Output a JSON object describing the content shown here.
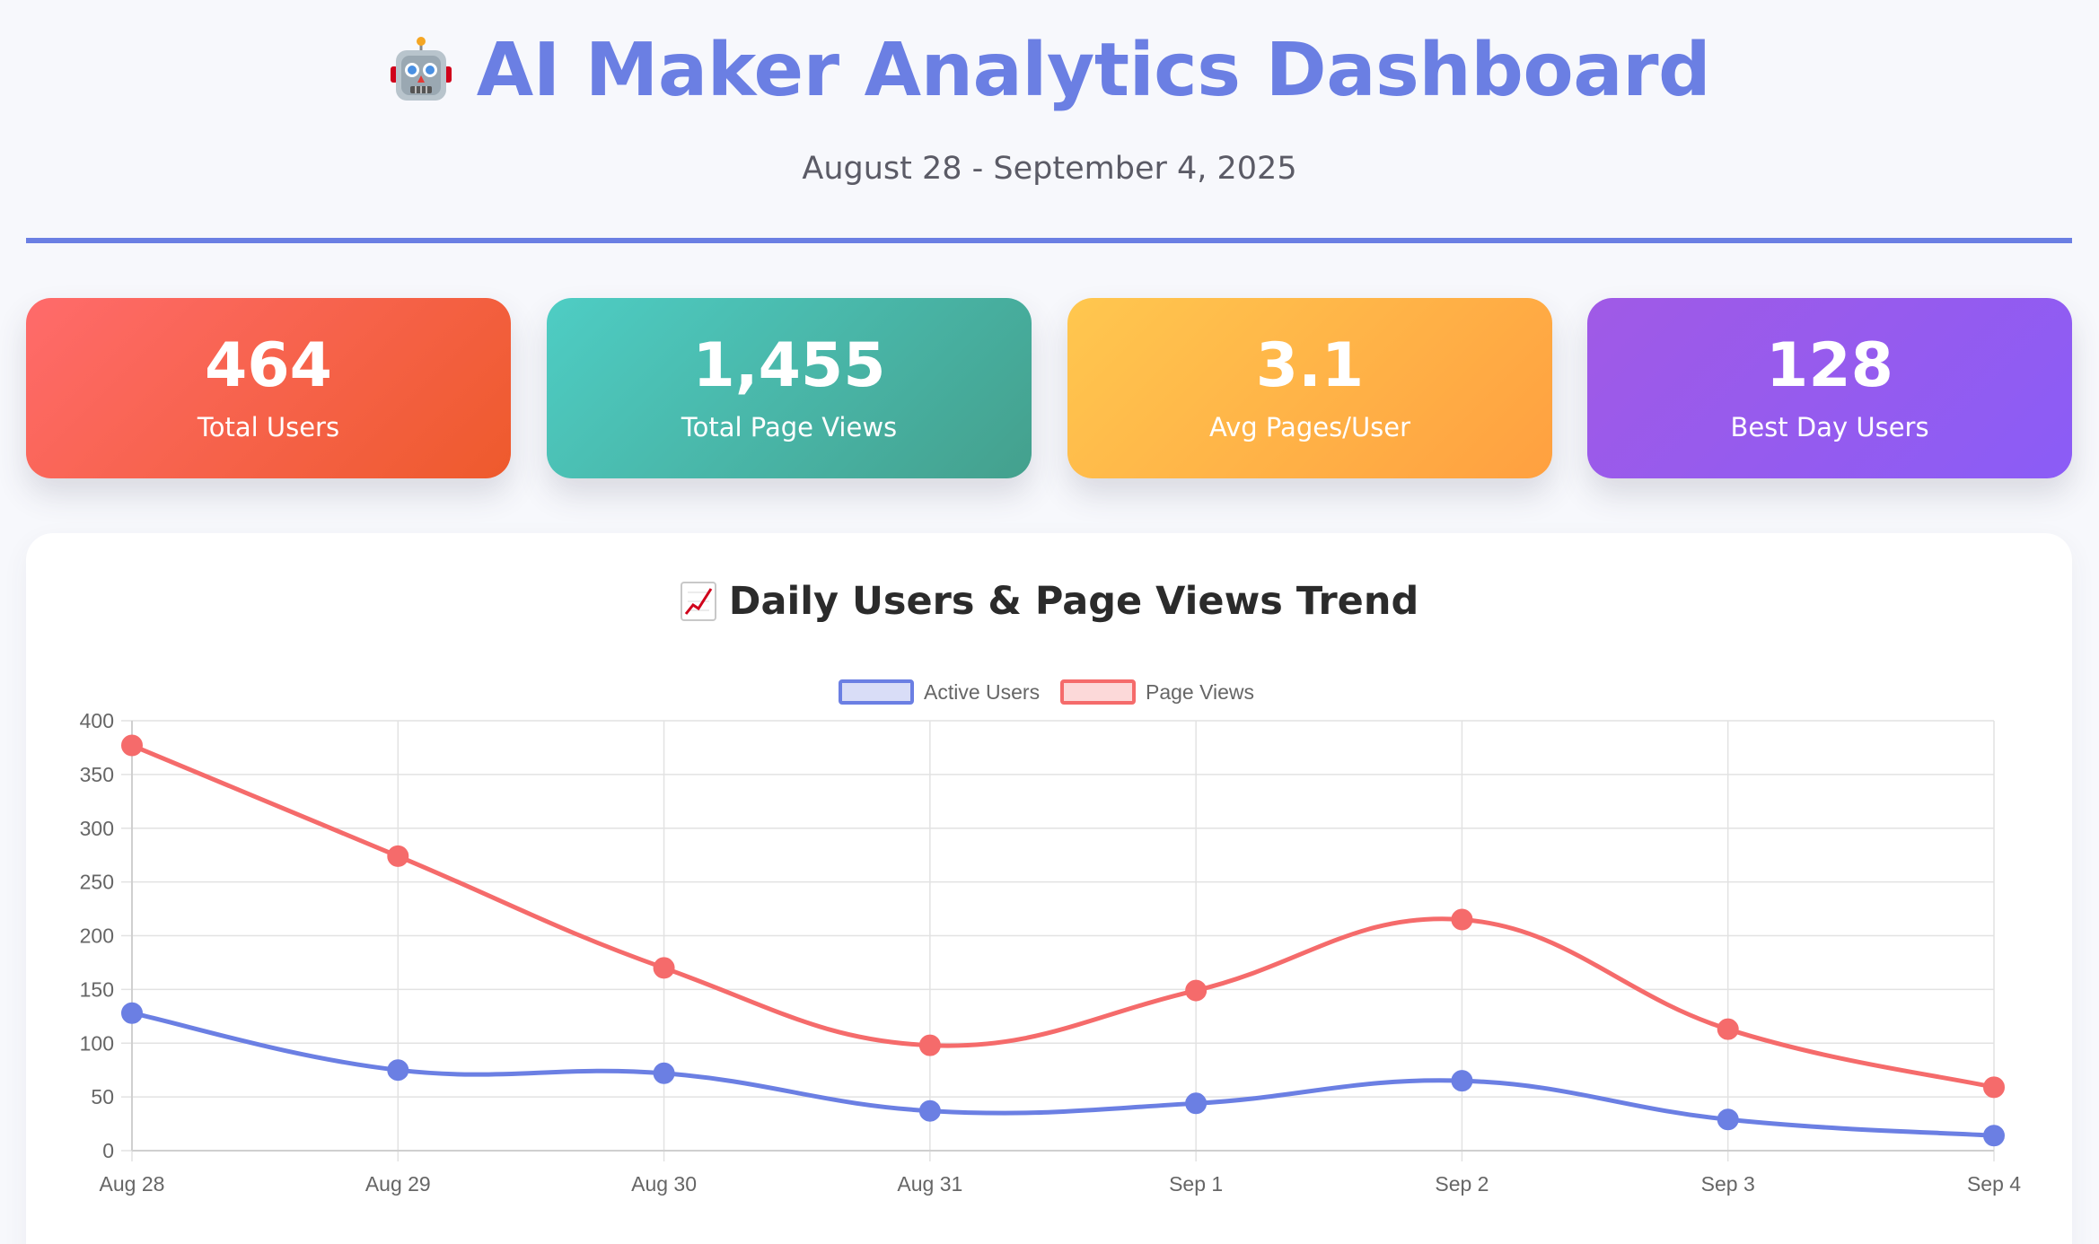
{
  "header": {
    "title": "AI Maker Analytics Dashboard",
    "subtitle": "August 28 - September 4, 2025",
    "icon": "robot-icon"
  },
  "stats": [
    {
      "value": "464",
      "label": "Total Users",
      "color_from": "#ff6b6b",
      "color_to": "#ee5a2c"
    },
    {
      "value": "1,455",
      "label": "Total Page Views",
      "color_from": "#4ecdc4",
      "color_to": "#44a08d"
    },
    {
      "value": "3.1",
      "label": "Avg Pages/User",
      "color_from": "#ffc74f",
      "color_to": "#ffa040"
    },
    {
      "value": "128",
      "label": "Best Day Users",
      "color_from": "#a05ae6",
      "color_to": "#8b5cf6"
    }
  ],
  "chart_section": {
    "icon": "chart-increasing-icon",
    "title": "Daily Users & Page Views Trend"
  },
  "chart_data": {
    "type": "line",
    "categories": [
      "Aug 28",
      "Aug 29",
      "Aug 30",
      "Aug 31",
      "Sep 1",
      "Sep 2",
      "Sep 3",
      "Sep 4"
    ],
    "series": [
      {
        "name": "Active Users",
        "values": [
          128,
          75,
          72,
          37,
          44,
          65,
          29,
          14
        ],
        "color": "#6b7fe3",
        "fill": "#d9ddf7"
      },
      {
        "name": "Page Views",
        "values": [
          377,
          274,
          170,
          98,
          149,
          215,
          113,
          59
        ],
        "color": "#f56b6b",
        "fill": "#fcd9d9"
      }
    ],
    "ylim": [
      0,
      400
    ],
    "yticks": [
      0,
      50,
      100,
      150,
      200,
      250,
      300,
      350,
      400
    ],
    "grid": true,
    "legend": "top-center",
    "title": "",
    "xlabel": "",
    "ylabel": ""
  }
}
